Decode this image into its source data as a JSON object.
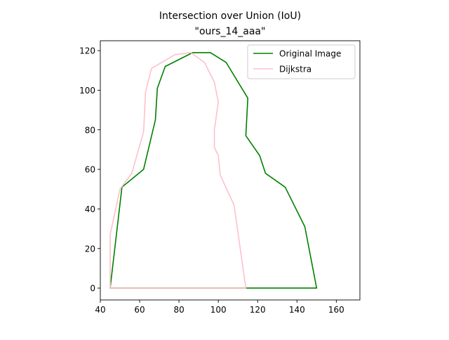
{
  "chart_data": {
    "type": "line",
    "title": "Intersection over Union (IoU)",
    "subtitle": "\"ours_14_aaa\"",
    "xlabel": "",
    "ylabel": "",
    "xlim": [
      40,
      172
    ],
    "ylim": [
      -6,
      125
    ],
    "xticks": [
      40,
      60,
      80,
      100,
      120,
      140,
      160
    ],
    "yticks": [
      0,
      20,
      40,
      60,
      80,
      100,
      120
    ],
    "grid": false,
    "legend_position": "top-right",
    "series": [
      {
        "name": "Original Image",
        "color": "#008000",
        "x": [
          45,
          51,
          62,
          68,
          69,
          73,
          87,
          96,
          104,
          115,
          114,
          121,
          124,
          134,
          144,
          150,
          45
        ],
        "y": [
          0,
          51,
          60,
          85,
          101,
          112,
          119,
          119,
          114,
          96,
          77,
          67,
          58,
          51,
          31,
          0,
          0
        ]
      },
      {
        "name": "Dijkstra",
        "color": "#ffc0cb",
        "x": [
          45,
          45,
          50,
          56,
          62,
          63,
          66,
          78,
          86,
          93,
          98,
          100,
          98,
          98,
          100,
          101,
          108,
          114,
          45
        ],
        "y": [
          0,
          27,
          50,
          58,
          79,
          99,
          111,
          118,
          119,
          114,
          104,
          94,
          80,
          71,
          67,
          57,
          42,
          0,
          0
        ]
      }
    ]
  }
}
